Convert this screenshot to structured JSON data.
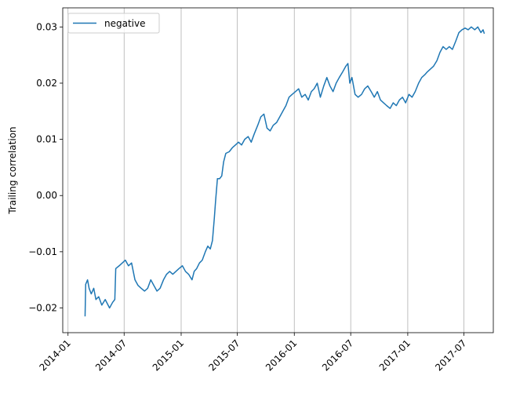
{
  "chart_data": {
    "type": "line",
    "title": "",
    "xlabel": "",
    "ylabel": "Trailing correlation",
    "xlim": [
      "2013-12-15",
      "2017-10-04"
    ],
    "ylim": [
      -0.0244,
      0.0334
    ],
    "x_ticks": [
      "2014-01",
      "2014-07",
      "2015-01",
      "2015-07",
      "2016-01",
      "2016-07",
      "2017-01",
      "2017-07"
    ],
    "y_ticks": [
      -0.02,
      -0.01,
      0.0,
      0.01,
      0.02,
      0.03
    ],
    "y_tick_labels": [
      "−0.02",
      "−0.01",
      "0.00",
      "0.01",
      "0.02",
      "0.03"
    ],
    "grid": "vertical",
    "legend_position": "upper-left",
    "series": [
      {
        "name": "negative",
        "color": "#1f77b4",
        "points": [
          [
            "2014-02-25",
            -0.0215
          ],
          [
            "2014-02-27",
            -0.0158
          ],
          [
            "2014-03-05",
            -0.015
          ],
          [
            "2014-03-10",
            -0.0165
          ],
          [
            "2014-03-17",
            -0.0175
          ],
          [
            "2014-03-25",
            -0.0165
          ],
          [
            "2014-04-01",
            -0.0185
          ],
          [
            "2014-04-10",
            -0.018
          ],
          [
            "2014-04-20",
            -0.0195
          ],
          [
            "2014-05-01",
            -0.0185
          ],
          [
            "2014-05-15",
            -0.02
          ],
          [
            "2014-05-25",
            -0.019
          ],
          [
            "2014-06-01",
            -0.0185
          ],
          [
            "2014-06-04",
            -0.013
          ],
          [
            "2014-06-15",
            -0.0125
          ],
          [
            "2014-06-25",
            -0.012
          ],
          [
            "2014-07-05",
            -0.0115
          ],
          [
            "2014-07-15",
            -0.0125
          ],
          [
            "2014-07-25",
            -0.012
          ],
          [
            "2014-08-05",
            -0.015
          ],
          [
            "2014-08-15",
            -0.016
          ],
          [
            "2014-08-25",
            -0.0165
          ],
          [
            "2014-09-05",
            -0.017
          ],
          [
            "2014-09-15",
            -0.0165
          ],
          [
            "2014-09-25",
            -0.015
          ],
          [
            "2014-10-05",
            -0.016
          ],
          [
            "2014-10-15",
            -0.017
          ],
          [
            "2014-10-25",
            -0.0165
          ],
          [
            "2014-11-05",
            -0.015
          ],
          [
            "2014-11-15",
            -0.014
          ],
          [
            "2014-11-25",
            -0.0135
          ],
          [
            "2014-12-05",
            -0.014
          ],
          [
            "2014-12-15",
            -0.0135
          ],
          [
            "2014-12-25",
            -0.013
          ],
          [
            "2015-01-05",
            -0.0125
          ],
          [
            "2015-01-15",
            -0.0135
          ],
          [
            "2015-01-25",
            -0.014
          ],
          [
            "2015-02-05",
            -0.015
          ],
          [
            "2015-02-12",
            -0.0135
          ],
          [
            "2015-02-20",
            -0.013
          ],
          [
            "2015-03-01",
            -0.012
          ],
          [
            "2015-03-10",
            -0.0115
          ],
          [
            "2015-03-20",
            -0.01
          ],
          [
            "2015-03-28",
            -0.009
          ],
          [
            "2015-04-05",
            -0.0095
          ],
          [
            "2015-04-12",
            -0.008
          ],
          [
            "2015-04-18",
            -0.004
          ],
          [
            "2015-04-22",
            -0.001
          ],
          [
            "2015-04-28",
            0.003
          ],
          [
            "2015-05-05",
            0.003
          ],
          [
            "2015-05-12",
            0.0035
          ],
          [
            "2015-05-18",
            0.006
          ],
          [
            "2015-05-25",
            0.0075
          ],
          [
            "2015-06-05",
            0.0078
          ],
          [
            "2015-06-15",
            0.0085
          ],
          [
            "2015-06-25",
            0.009
          ],
          [
            "2015-07-05",
            0.0095
          ],
          [
            "2015-07-15",
            0.009
          ],
          [
            "2015-07-25",
            0.01
          ],
          [
            "2015-08-05",
            0.0105
          ],
          [
            "2015-08-15",
            0.0095
          ],
          [
            "2015-08-25",
            0.011
          ],
          [
            "2015-09-05",
            0.0125
          ],
          [
            "2015-09-15",
            0.014
          ],
          [
            "2015-09-25",
            0.0145
          ],
          [
            "2015-10-05",
            0.012
          ],
          [
            "2015-10-15",
            0.0115
          ],
          [
            "2015-10-25",
            0.0125
          ],
          [
            "2015-11-05",
            0.013
          ],
          [
            "2015-11-15",
            0.014
          ],
          [
            "2015-11-25",
            0.015
          ],
          [
            "2015-12-05",
            0.016
          ],
          [
            "2015-12-15",
            0.0175
          ],
          [
            "2015-12-25",
            0.018
          ],
          [
            "2016-01-05",
            0.0185
          ],
          [
            "2016-01-15",
            0.019
          ],
          [
            "2016-01-25",
            0.0175
          ],
          [
            "2016-02-05",
            0.018
          ],
          [
            "2016-02-15",
            0.017
          ],
          [
            "2016-02-25",
            0.0185
          ],
          [
            "2016-03-05",
            0.019
          ],
          [
            "2016-03-15",
            0.02
          ],
          [
            "2016-03-25",
            0.0175
          ],
          [
            "2016-04-05",
            0.0195
          ],
          [
            "2016-04-15",
            0.021
          ],
          [
            "2016-04-25",
            0.0195
          ],
          [
            "2016-05-05",
            0.0185
          ],
          [
            "2016-05-15",
            0.02
          ],
          [
            "2016-05-25",
            0.021
          ],
          [
            "2016-06-05",
            0.022
          ],
          [
            "2016-06-15",
            0.023
          ],
          [
            "2016-06-22",
            0.0235
          ],
          [
            "2016-06-28",
            0.02
          ],
          [
            "2016-07-05",
            0.021
          ],
          [
            "2016-07-15",
            0.018
          ],
          [
            "2016-07-25",
            0.0175
          ],
          [
            "2016-08-05",
            0.018
          ],
          [
            "2016-08-15",
            0.019
          ],
          [
            "2016-08-25",
            0.0195
          ],
          [
            "2016-09-05",
            0.0185
          ],
          [
            "2016-09-15",
            0.0175
          ],
          [
            "2016-09-25",
            0.0185
          ],
          [
            "2016-10-05",
            0.017
          ],
          [
            "2016-10-15",
            0.0165
          ],
          [
            "2016-10-25",
            0.016
          ],
          [
            "2016-11-05",
            0.0155
          ],
          [
            "2016-11-15",
            0.0165
          ],
          [
            "2016-11-25",
            0.016
          ],
          [
            "2016-12-05",
            0.017
          ],
          [
            "2016-12-15",
            0.0175
          ],
          [
            "2016-12-25",
            0.0165
          ],
          [
            "2017-01-05",
            0.018
          ],
          [
            "2017-01-15",
            0.0175
          ],
          [
            "2017-01-25",
            0.0185
          ],
          [
            "2017-02-05",
            0.02
          ],
          [
            "2017-02-15",
            0.021
          ],
          [
            "2017-02-25",
            0.0215
          ],
          [
            "2017-03-05",
            0.022
          ],
          [
            "2017-03-15",
            0.0225
          ],
          [
            "2017-03-25",
            0.023
          ],
          [
            "2017-04-05",
            0.024
          ],
          [
            "2017-04-15",
            0.0255
          ],
          [
            "2017-04-25",
            0.0265
          ],
          [
            "2017-05-05",
            0.026
          ],
          [
            "2017-05-15",
            0.0265
          ],
          [
            "2017-05-25",
            0.026
          ],
          [
            "2017-06-05",
            0.0275
          ],
          [
            "2017-06-15",
            0.029
          ],
          [
            "2017-06-25",
            0.0295
          ],
          [
            "2017-07-05",
            0.0298
          ],
          [
            "2017-07-15",
            0.0295
          ],
          [
            "2017-07-25",
            0.03
          ],
          [
            "2017-08-05",
            0.0295
          ],
          [
            "2017-08-15",
            0.03
          ],
          [
            "2017-08-25",
            0.029
          ],
          [
            "2017-09-01",
            0.0295
          ],
          [
            "2017-09-05",
            0.0288
          ]
        ]
      }
    ]
  }
}
